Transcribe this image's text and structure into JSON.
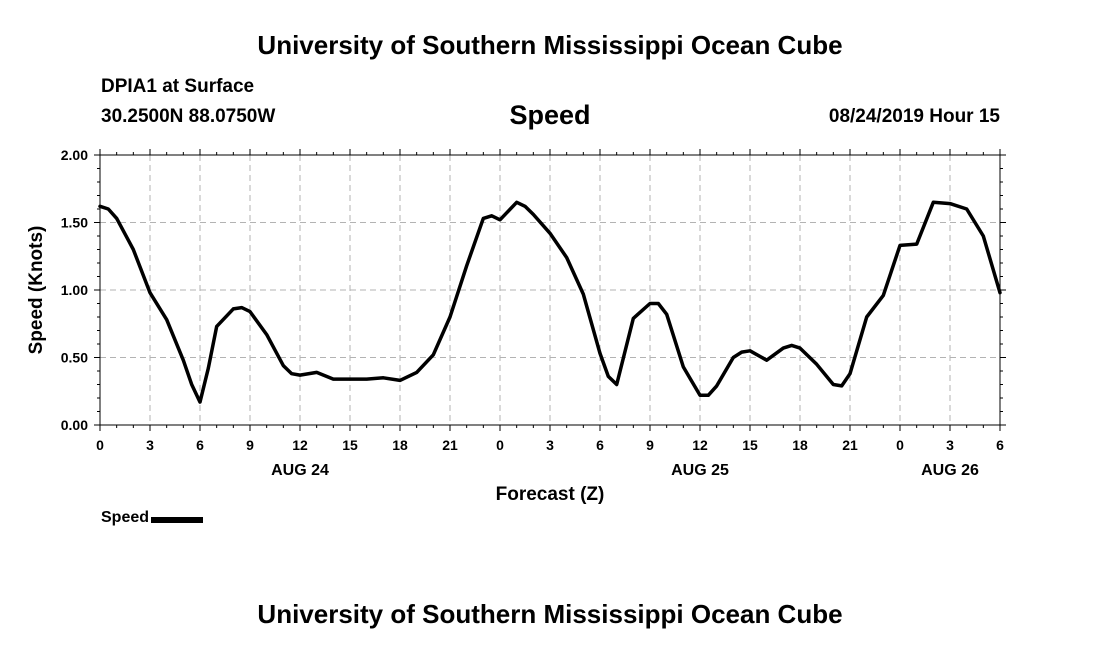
{
  "header": {
    "title": "University of Southern Mississippi Ocean Cube",
    "station": "DPIA1 at Surface",
    "coords": "30.2500N 88.0750W",
    "variable": "Speed",
    "datetime": "08/24/2019 Hour 15"
  },
  "footer": {
    "title": "University of Southern Mississippi Ocean Cube"
  },
  "chart_data": {
    "type": "line",
    "title": "Speed",
    "xlabel": "Forecast (Z)",
    "ylabel": "Speed (Knots)",
    "x_unit": "hours from 2019-08-24 00Z",
    "xlim": [
      0,
      54
    ],
    "ylim": [
      0,
      2.0
    ],
    "y_ticks": [
      "0.00",
      "0.50",
      "1.00",
      "1.50",
      "2.00"
    ],
    "x_tick_labels": [
      "0",
      "3",
      "6",
      "9",
      "12",
      "15",
      "18",
      "21",
      "0",
      "3",
      "6",
      "9",
      "12",
      "15",
      "18",
      "21",
      "0",
      "3",
      "6"
    ],
    "date_labels": [
      {
        "label": "AUG 24",
        "hour": 12
      },
      {
        "label": "AUG 25",
        "hour": 36
      },
      {
        "label": "AUG 26",
        "hour": 51
      }
    ],
    "grid": true,
    "legend_position": "bottom-left",
    "series": [
      {
        "name": "Speed",
        "color": "#000000",
        "points": [
          [
            0,
            1.62
          ],
          [
            0.5,
            1.6
          ],
          [
            1,
            1.53
          ],
          [
            2,
            1.3
          ],
          [
            3,
            0.98
          ],
          [
            4,
            0.78
          ],
          [
            5,
            0.48
          ],
          [
            5.5,
            0.3
          ],
          [
            6,
            0.17
          ],
          [
            6.5,
            0.42
          ],
          [
            7,
            0.73
          ],
          [
            8,
            0.86
          ],
          [
            8.5,
            0.87
          ],
          [
            9,
            0.84
          ],
          [
            10,
            0.67
          ],
          [
            11,
            0.44
          ],
          [
            11.5,
            0.38
          ],
          [
            12,
            0.37
          ],
          [
            13,
            0.39
          ],
          [
            14,
            0.34
          ],
          [
            15,
            0.34
          ],
          [
            16,
            0.34
          ],
          [
            17,
            0.35
          ],
          [
            18,
            0.33
          ],
          [
            19,
            0.39
          ],
          [
            20,
            0.52
          ],
          [
            21,
            0.8
          ],
          [
            22,
            1.18
          ],
          [
            23,
            1.53
          ],
          [
            23.5,
            1.55
          ],
          [
            24,
            1.52
          ],
          [
            25,
            1.65
          ],
          [
            25.5,
            1.62
          ],
          [
            26,
            1.56
          ],
          [
            27,
            1.42
          ],
          [
            28,
            1.24
          ],
          [
            29,
            0.97
          ],
          [
            30,
            0.53
          ],
          [
            30.5,
            0.36
          ],
          [
            31,
            0.3
          ],
          [
            32,
            0.79
          ],
          [
            33,
            0.9
          ],
          [
            33.5,
            0.9
          ],
          [
            34,
            0.82
          ],
          [
            35,
            0.43
          ],
          [
            36,
            0.22
          ],
          [
            36.5,
            0.22
          ],
          [
            37,
            0.29
          ],
          [
            38,
            0.5
          ],
          [
            38.5,
            0.54
          ],
          [
            39,
            0.55
          ],
          [
            40,
            0.48
          ],
          [
            41,
            0.57
          ],
          [
            41.5,
            0.59
          ],
          [
            42,
            0.57
          ],
          [
            43,
            0.45
          ],
          [
            44,
            0.3
          ],
          [
            44.5,
            0.29
          ],
          [
            45,
            0.38
          ],
          [
            46,
            0.8
          ],
          [
            47,
            0.96
          ],
          [
            48,
            1.33
          ],
          [
            49,
            1.34
          ],
          [
            50,
            1.65
          ],
          [
            51,
            1.64
          ],
          [
            52,
            1.6
          ],
          [
            53,
            1.4
          ],
          [
            54,
            0.98
          ]
        ]
      }
    ]
  }
}
